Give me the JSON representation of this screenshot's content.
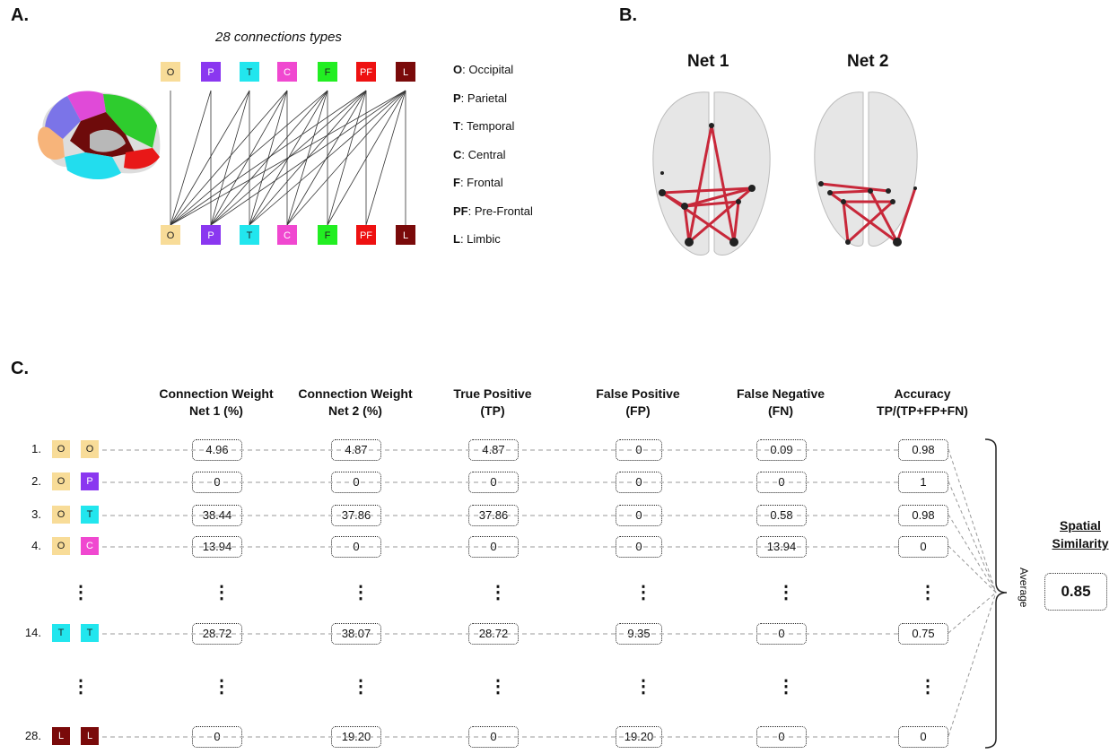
{
  "panels": {
    "a": "A.",
    "b": "B.",
    "c": "C."
  },
  "panel_a": {
    "title": "28 connections types",
    "regions": [
      {
        "code": "O",
        "color": "#f8dc98"
      },
      {
        "code": "P",
        "color": "#8a37f0"
      },
      {
        "code": "T",
        "color": "#22e6ee"
      },
      {
        "code": "C",
        "color": "#f048d0"
      },
      {
        "code": "F",
        "color": "#22ee22"
      },
      {
        "code": "PF",
        "color": "#ee1111"
      },
      {
        "code": "L",
        "color": "#7a0a0a"
      }
    ],
    "legend": [
      {
        "code": "O",
        "name": ": Occipital"
      },
      {
        "code": "P",
        "name": ": Parietal"
      },
      {
        "code": "T",
        "name": ": Temporal"
      },
      {
        "code": "C",
        "name": ": Central"
      },
      {
        "code": "F",
        "name": ": Frontal"
      },
      {
        "code": "PF",
        "name": ": Pre-Frontal"
      },
      {
        "code": "L",
        "name": ": Limbic"
      }
    ]
  },
  "panel_b": {
    "net1": "Net 1",
    "net2": "Net 2"
  },
  "panel_c": {
    "headers": [
      [
        "Connection Weight",
        "Net 1 (%)"
      ],
      [
        "Connection Weight",
        "Net 2 (%)"
      ],
      [
        "True Positive",
        "(TP)"
      ],
      [
        "False Positive",
        "(FP)"
      ],
      [
        "False Negative",
        "(FN)"
      ],
      [
        "Accuracy",
        "TP/(TP+FP+FN)"
      ]
    ],
    "rows": [
      {
        "index": "1.",
        "pair": [
          "O",
          "O"
        ],
        "values": [
          "4.96",
          "4.87",
          "4.87",
          "0",
          "0.09",
          "0.98"
        ]
      },
      {
        "index": "2.",
        "pair": [
          "O",
          "P"
        ],
        "values": [
          "0",
          "0",
          "0",
          "0",
          "0",
          "1"
        ]
      },
      {
        "index": "3.",
        "pair": [
          "O",
          "T"
        ],
        "values": [
          "38.44",
          "37.86",
          "37.86",
          "0",
          "0.58",
          "0.98"
        ]
      },
      {
        "index": "4.",
        "pair": [
          "O",
          "C"
        ],
        "values": [
          "13.94",
          "0",
          "0",
          "0",
          "13.94",
          "0"
        ]
      },
      {
        "index": "14.",
        "pair": [
          "T",
          "T"
        ],
        "values": [
          "28.72",
          "38.07",
          "28.72",
          "9.35",
          "0",
          "0.75"
        ]
      },
      {
        "index": "28.",
        "pair": [
          "L",
          "L"
        ],
        "values": [
          "0",
          "19.20",
          "0",
          "19.20",
          "0",
          "0"
        ]
      }
    ],
    "ellipsis": "⋮",
    "average_label": "Average",
    "similarity_title": [
      "Spatial",
      "Similarity"
    ],
    "similarity_value": "0.85"
  }
}
